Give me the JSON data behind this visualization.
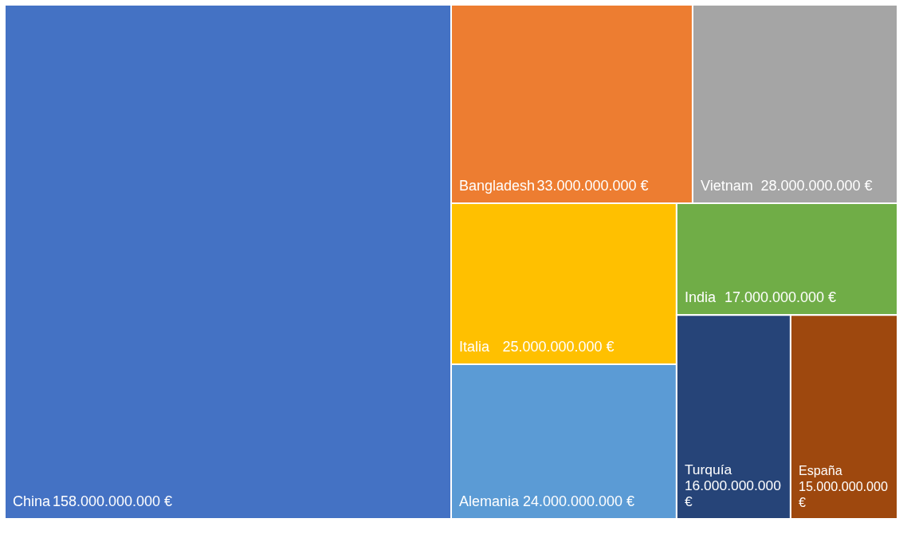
{
  "chart_data": {
    "type": "other",
    "categories": [
      "China",
      "Bangladesh",
      "Vietnam",
      "Italia",
      "Alemania",
      "India",
      "Turquía",
      "España"
    ],
    "values": [
      158000000000,
      33000000000,
      28000000000,
      25000000000,
      24000000000,
      17000000000,
      16000000000,
      15000000000
    ],
    "value_labels": [
      "158.000.000.000 €",
      "33.000.000.000 €",
      "28.000.000.000 €",
      "25.000.000.000 €",
      "24.000.000.000 €",
      "17.000.000.000 €",
      "16.000.000.000 €",
      "15.000.000.000 €"
    ],
    "colors": [
      "#4472c4",
      "#ed7d31",
      "#a5a5a5",
      "#ffc000",
      "#5b9bd5",
      "#70ad47",
      "#264478",
      "#9e480e"
    ]
  }
}
